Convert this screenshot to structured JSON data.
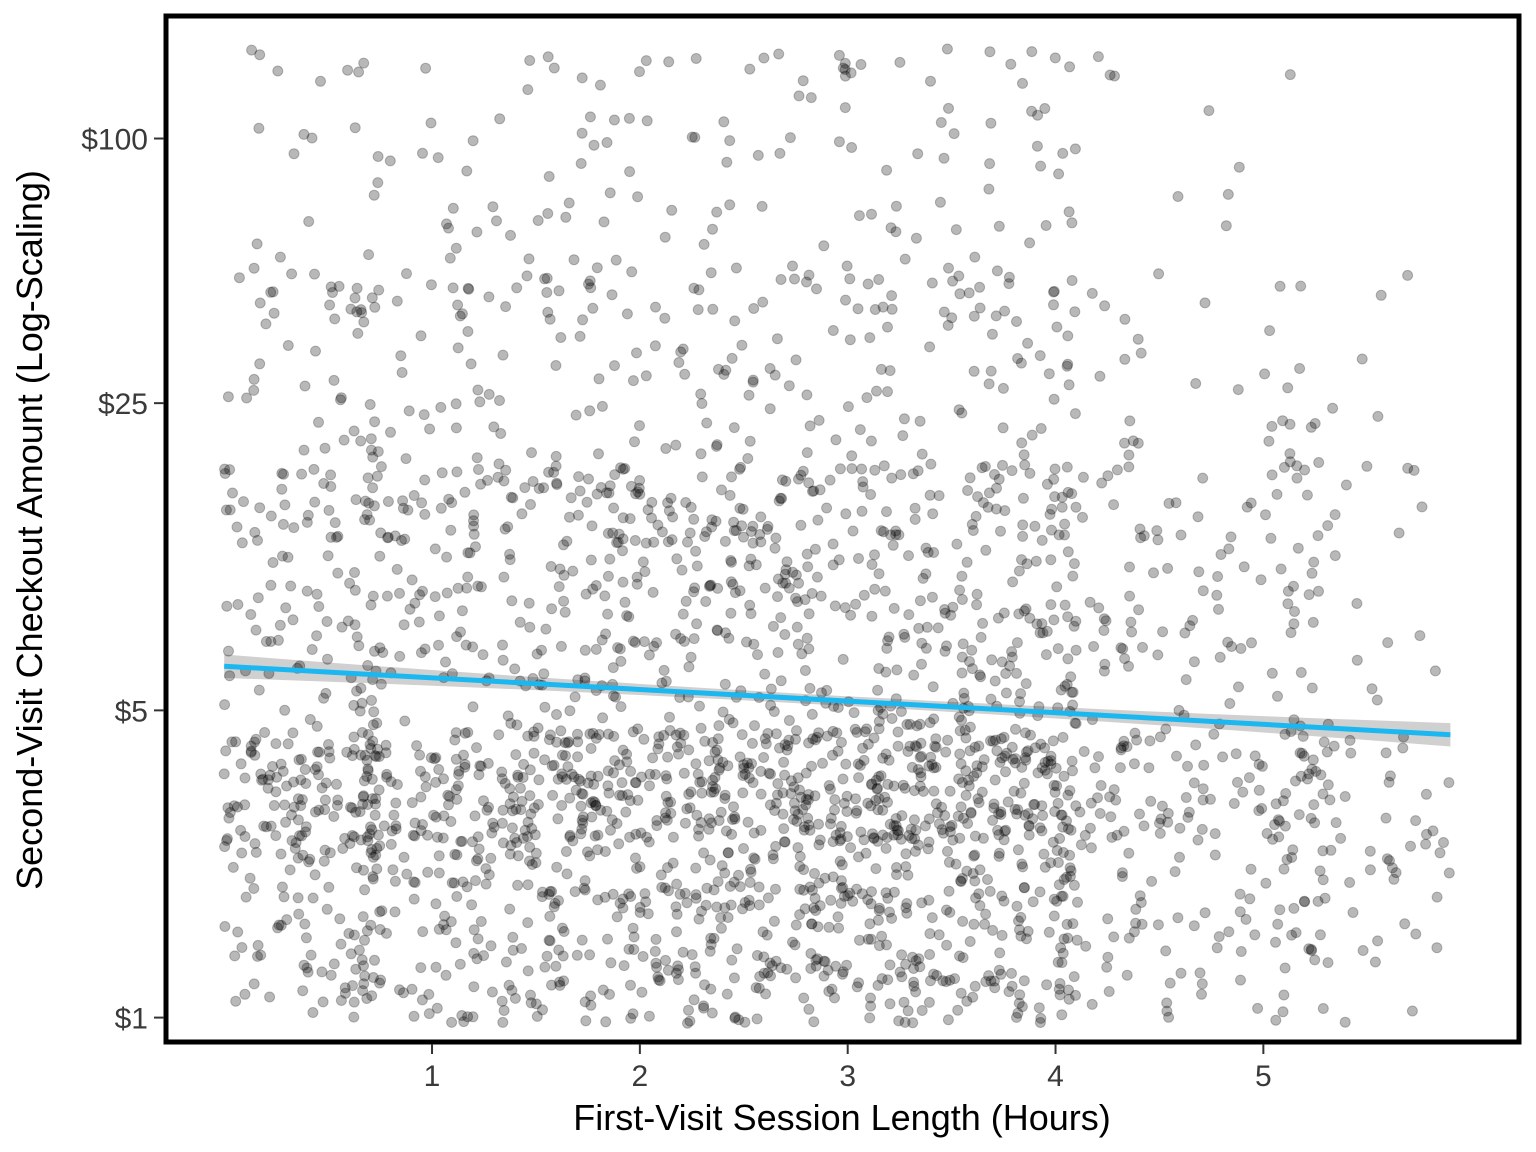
{
  "chart_data": {
    "type": "scatter",
    "title": "",
    "xlabel": "First-Visit Session Length (Hours)",
    "ylabel": "Second-Visit Checkout Amount (Log-Scaling)",
    "x_ticks": [
      {
        "value": 1,
        "label": "1"
      },
      {
        "value": 2,
        "label": "2"
      },
      {
        "value": 3,
        "label": "3"
      },
      {
        "value": 4,
        "label": "4"
      },
      {
        "value": 5,
        "label": "5"
      }
    ],
    "y_ticks": [
      {
        "value": 1,
        "label": "$1"
      },
      {
        "value": 5,
        "label": "$5"
      },
      {
        "value": 25,
        "label": "$25"
      },
      {
        "value": 100,
        "label": "$100"
      }
    ],
    "xlim": [
      -0.28,
      6.23
    ],
    "ylim": [
      0.88,
      190
    ],
    "y_scale": "log",
    "grid": false,
    "legend": "none",
    "points": {
      "count": 2800,
      "x_range": [
        0.0,
        5.9
      ],
      "y_range": [
        0.95,
        160
      ],
      "x_density": "concentrated between 1 and 4 hours, sparse above 4.5",
      "y_density": "concentrated between $1 and $15, sparse above $50"
    },
    "trend_line": {
      "method": "linear fit",
      "x": [
        0.0,
        5.9
      ],
      "y": [
        6.3,
        4.4
      ]
    },
    "colors": {
      "points": "#000000",
      "point_opacity": 0.28,
      "trend_line": "#1ab7f0",
      "confidence_band": "#c8c8c8",
      "frame": "#000000"
    }
  }
}
